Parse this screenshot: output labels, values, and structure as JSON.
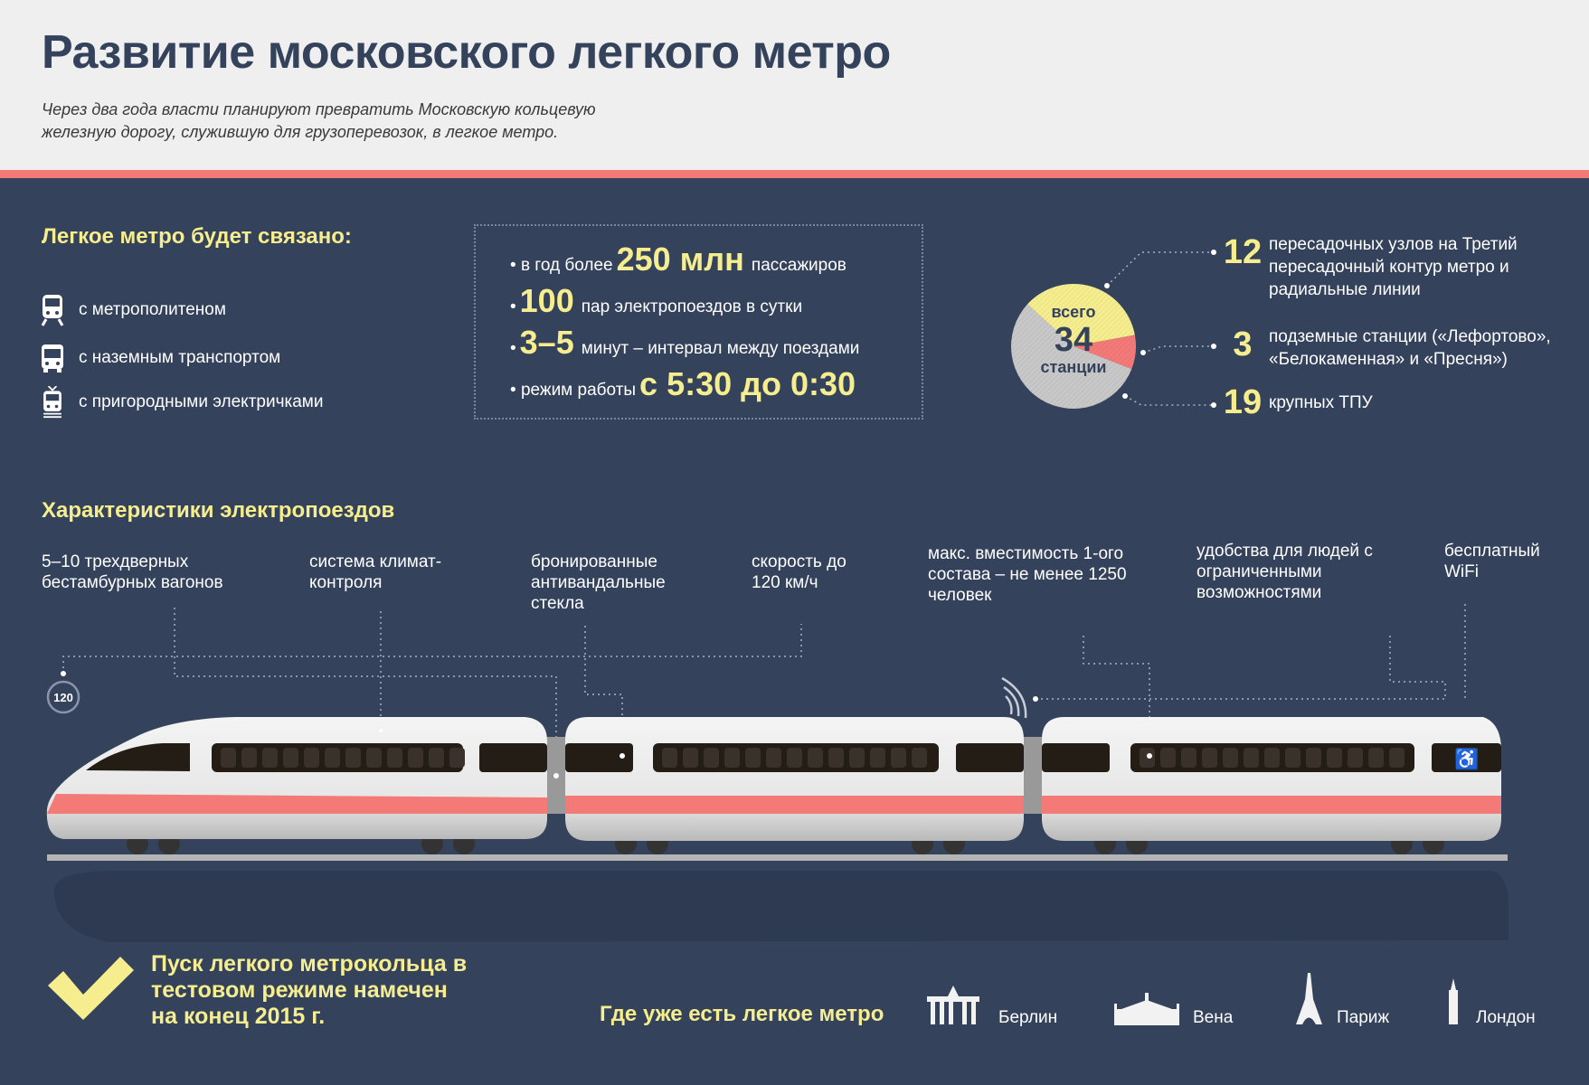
{
  "header": {
    "title": "Развитие московского легкого метро",
    "subtitle": "Через два года власти планируют превратить Московскую кольцевую железную дорогу, служившую для грузоперевозок, в легкое метро."
  },
  "colors": {
    "background": "#34425c",
    "accent_red": "#f47a78",
    "accent_yellow": "#f6ee8e",
    "header_bg": "#efefef"
  },
  "connections": {
    "heading": "Легкое метро будет связано:",
    "items": [
      {
        "icon": "metro-train-icon",
        "label": "с метрополитеном"
      },
      {
        "icon": "bus-icon",
        "label": "с наземным транспортом"
      },
      {
        "icon": "commuter-train-icon",
        "label": "с пригородными электричками"
      }
    ]
  },
  "stats": [
    {
      "prefix": "в год более",
      "value": "250 млн",
      "suffix": "пассажиров"
    },
    {
      "prefix": "",
      "value": "100",
      "suffix": "пар электропоездов в сутки"
    },
    {
      "prefix": "",
      "value": "3–5",
      "suffix": "минут – интервал между поездами"
    },
    {
      "prefix": "режим работы",
      "value": "с 5:30 до 0:30",
      "suffix": ""
    }
  ],
  "stations": {
    "top": "всего",
    "total": "34",
    "bottom": "станции",
    "breakdown": [
      {
        "value": "12",
        "label": "пересадочных узлов на Третий пересадочный контур метро и радиальные линии",
        "color": "#f6ee8e"
      },
      {
        "value": "3",
        "label": "подземные станции («Лефортово», «Белокаменная» и «Пресня»)",
        "color": "#f47a78"
      },
      {
        "value": "19",
        "label": "крупных ТПУ",
        "color": "#c8c8c8"
      }
    ]
  },
  "features": {
    "heading": "Характеристики электропоездов",
    "items": [
      "5–10 трехдверных бестамбурных вагонов",
      "система климат-контроля",
      "бронированные антивандальные стекла",
      "скорость до 120 км/ч",
      "макс. вместимость 1-ого состава – не менее 1250 человек",
      "удобства для людей с ограниченными возможностями",
      "бесплатный WiFi"
    ],
    "speed_badge": "120"
  },
  "launch": {
    "icon": "checkmark-icon",
    "text": "Пуск легкого метрокольца в тестовом режиме намечен на конец 2015 г."
  },
  "cities": {
    "heading": "Где уже есть легкое метро",
    "items": [
      {
        "icon": "brandenburg-gate-icon",
        "label": "Берлин"
      },
      {
        "icon": "vienna-palace-icon",
        "label": "Вена"
      },
      {
        "icon": "eiffel-tower-icon",
        "label": "Париж"
      },
      {
        "icon": "big-ben-icon",
        "label": "Лондон"
      }
    ]
  }
}
